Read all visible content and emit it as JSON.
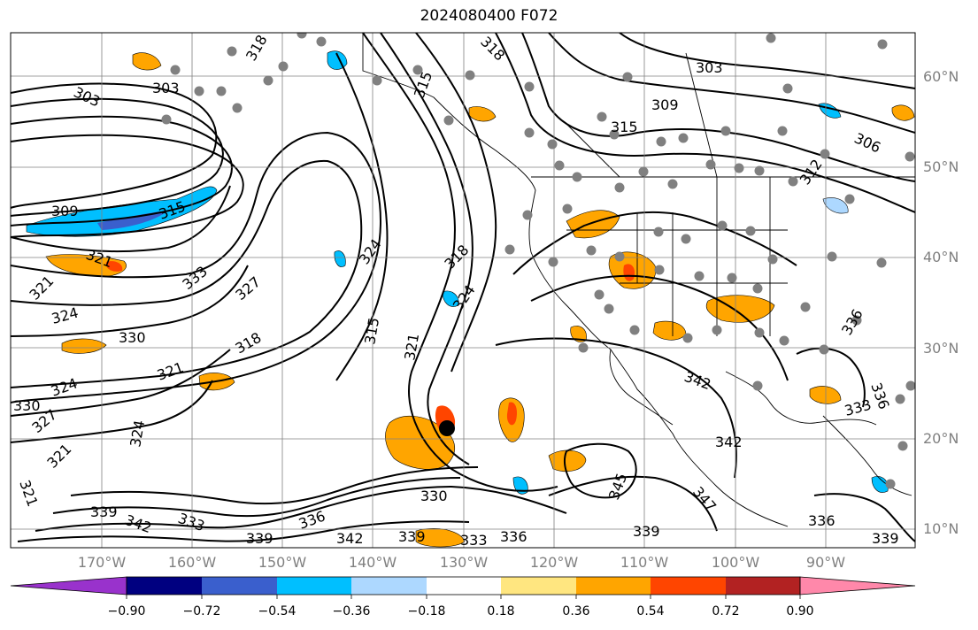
{
  "title": "2024080400 F072",
  "lat_labels": [
    "60°N",
    "50°N",
    "40°N",
    "30°N",
    "20°N",
    "10°N"
  ],
  "lon_labels": [
    "170°W",
    "160°W",
    "150°W",
    "140°W",
    "130°W",
    "120°W",
    "110°W",
    "100°W",
    "90°W"
  ],
  "colorbar": {
    "ticks": [
      "−0.90",
      "−0.72",
      "−0.54",
      "−0.36",
      "−0.18",
      "0.18",
      "0.36",
      "0.54",
      "0.72",
      "0.90"
    ],
    "colors": [
      "#9932cc",
      "#000080",
      "#3a5fcd",
      "#00bfff",
      "#add8ff",
      "#ffffff",
      "#ffe680",
      "#ffa500",
      "#ff4500",
      "#b22222",
      "#ff88aa"
    ]
  },
  "contour_labels": [
    "303",
    "303",
    "309",
    "315",
    "318",
    "303",
    "309",
    "315",
    "306",
    "312",
    "309",
    "315",
    "321",
    "321",
    "324",
    "333",
    "327",
    "324",
    "318",
    "330",
    "321",
    "324",
    "330",
    "327",
    "324",
    "321",
    "324",
    "315",
    "321",
    "321",
    "339",
    "342",
    "333",
    "336",
    "330",
    "339",
    "339",
    "342",
    "333",
    "336",
    "345",
    "347",
    "342",
    "339",
    "333",
    "336",
    "342",
    "336",
    "339",
    "336",
    "318",
    "318"
  ]
}
